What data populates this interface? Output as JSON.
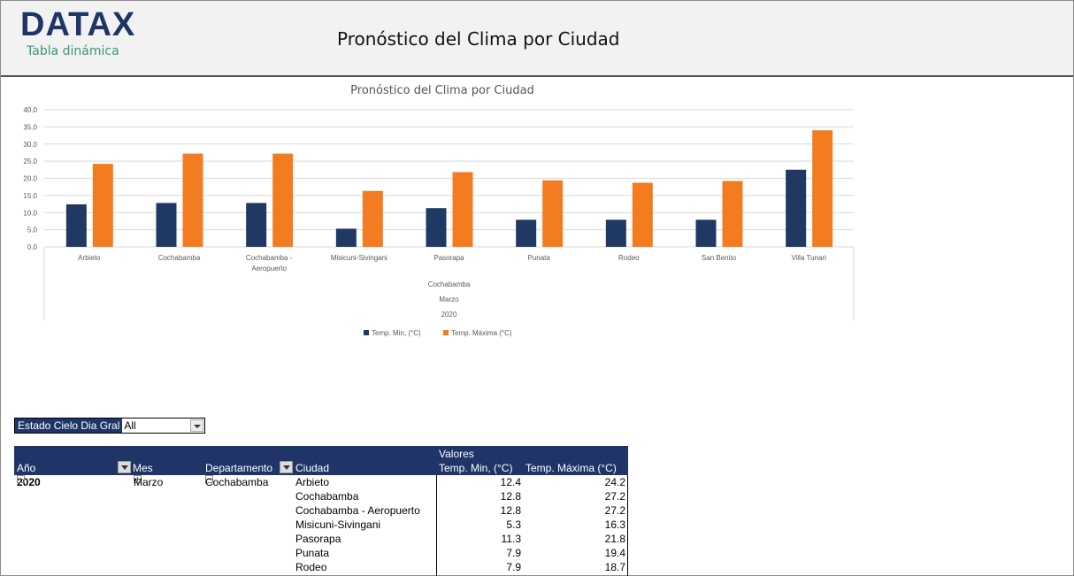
{
  "header": {
    "logo": "DATAX",
    "subtitle": "Tabla dinámica",
    "title": "Pronóstico del Clima por Ciudad"
  },
  "chart_data": {
    "type": "bar",
    "title": "Pronóstico del Clima por Ciudad",
    "categories": [
      "Arbieto",
      "Cochabamba",
      "Cochabamba - Aeropuerto",
      "Misicuni-Sivingani",
      "Pasorapa",
      "Punata",
      "Rodeo",
      "San Benito",
      "Villa Tunari"
    ],
    "group_labels": [
      "Cochabamba",
      "Marzo",
      "2020"
    ],
    "series": [
      {
        "name": "Temp. Min, (°C)",
        "color": "#203864",
        "values": [
          12.4,
          12.8,
          12.8,
          5.3,
          11.3,
          7.9,
          7.9,
          7.9,
          22.5
        ]
      },
      {
        "name": "Temp. Máxima (°C)",
        "color": "#f47c20",
        "values": [
          24.2,
          27.2,
          27.2,
          16.3,
          21.8,
          19.4,
          18.7,
          19.2,
          34.0
        ]
      }
    ],
    "ylim": [
      0,
      40
    ],
    "yticks": [
      "0.0",
      "5.0",
      "10.0",
      "15.0",
      "20.0",
      "25.0",
      "30.0",
      "35.0",
      "40.0"
    ],
    "grid": true,
    "legend": "bottom"
  },
  "slicer": {
    "label": "Estado Cielo Dia Gral",
    "value": "All"
  },
  "pivot": {
    "valores": "Valores",
    "headers": [
      "Año",
      "Mes",
      "Departamento",
      "Ciudad",
      "Temp. Min, (°C)",
      "Temp. Máxima (°C)"
    ],
    "year": "2020",
    "month": "Marzo",
    "dept": "Cochabamba",
    "rows": [
      {
        "city": "Arbieto",
        "min": "12.4",
        "max": "24.2"
      },
      {
        "city": "Cochabamba",
        "min": "12.8",
        "max": "27.2"
      },
      {
        "city": "Cochabamba - Aeropuerto",
        "min": "12.8",
        "max": "27.2"
      },
      {
        "city": "Misicuni-Sivingani",
        "min": "5.3",
        "max": "16.3"
      },
      {
        "city": "Pasorapa",
        "min": "11.3",
        "max": "21.8"
      },
      {
        "city": "Punata",
        "min": "7.9",
        "max": "19.4"
      },
      {
        "city": "Rodeo",
        "min": "7.9",
        "max": "18.7"
      }
    ]
  }
}
